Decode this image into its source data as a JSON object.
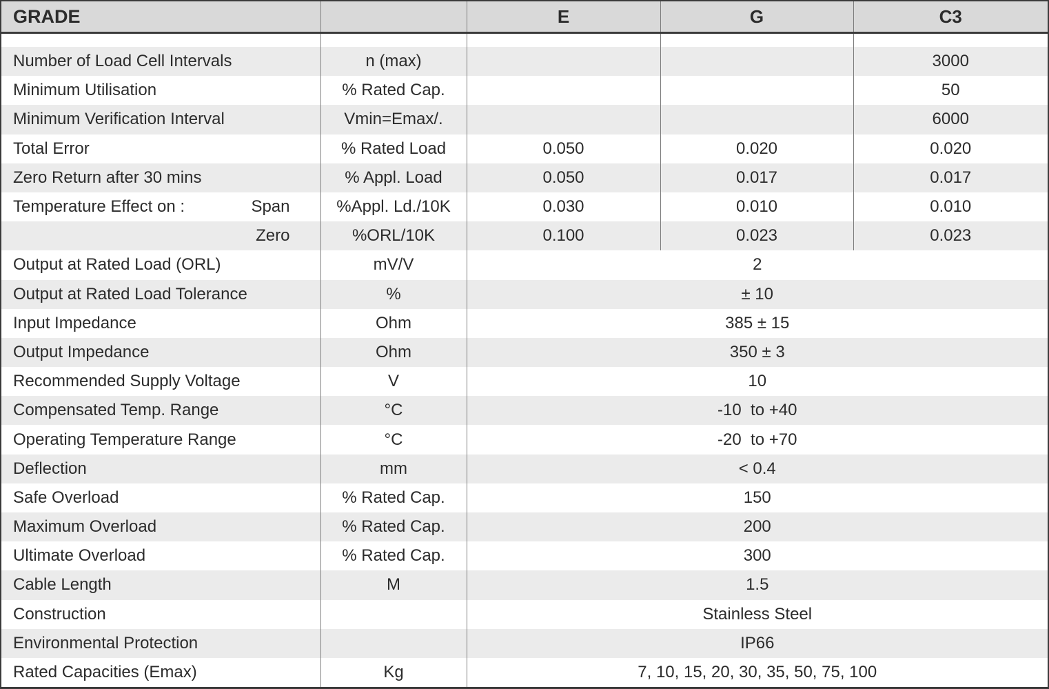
{
  "title": "Load cell specification table",
  "colors": {
    "header_bg": "#d9d9d9",
    "stripe_bg": "#ebebeb",
    "outer_border": "#3b3b3b",
    "grid_line": "#7d7d7d",
    "text": "#2c2c2c"
  },
  "header": {
    "grade_label": "GRADE",
    "unit_header": "",
    "grades": [
      "E",
      "G",
      "C3"
    ]
  },
  "rows": [
    {
      "label": "Number of Load Cell Intervals",
      "unit": "n (max)",
      "e": "",
      "g": "",
      "c3": "3000"
    },
    {
      "label": "Minimum Utilisation",
      "unit": "% Rated Cap.",
      "e": "",
      "g": "",
      "c3": "50"
    },
    {
      "label": "Minimum Verification Interval",
      "unit": "Vmin=Emax/.",
      "e": "",
      "g": "",
      "c3": "6000"
    },
    {
      "label": "Total Error",
      "unit": "% Rated Load",
      "e": "0.050",
      "g": "0.020",
      "c3": "0.020"
    },
    {
      "label": "Zero Return after 30 mins",
      "unit": "% Appl. Load",
      "e": "0.050",
      "g": "0.017",
      "c3": "0.017"
    },
    {
      "label": "Temperature Effect on :",
      "label2": "Span",
      "unit": "%Appl. Ld./10K",
      "e": "0.030",
      "g": "0.010",
      "c3": "0.010"
    },
    {
      "label": "",
      "label2": "Zero",
      "unit": "%ORL/10K",
      "e": "0.100",
      "g": "0.023",
      "c3": "0.023"
    },
    {
      "label": "Output at Rated Load (ORL)",
      "unit": "mV/V",
      "value": "2"
    },
    {
      "label": "Output at Rated Load Tolerance",
      "unit": "%",
      "value": "± 10"
    },
    {
      "label": "Input Impedance",
      "unit": "Ohm",
      "value": "385 ± 15"
    },
    {
      "label": "Output Impedance",
      "unit": "Ohm",
      "value": "350 ± 3"
    },
    {
      "label": "Recommended Supply Voltage",
      "unit": "V",
      "value": "10"
    },
    {
      "label": "Compensated Temp. Range",
      "unit": "°C",
      "value": "-10  to +40"
    },
    {
      "label": "Operating Temperature Range",
      "unit": "°C",
      "value": "-20  to +70"
    },
    {
      "label": "Deflection",
      "unit": "mm",
      "value": "< 0.4"
    },
    {
      "label": "Safe Overload",
      "unit": "% Rated Cap.",
      "value": "150"
    },
    {
      "label": "Maximum Overload",
      "unit": "% Rated Cap.",
      "value": "200"
    },
    {
      "label": "Ultimate Overload",
      "unit": "% Rated Cap.",
      "value": "300"
    },
    {
      "label": "Cable Length",
      "unit": "M",
      "value": "1.5"
    },
    {
      "label": "Construction",
      "unit": "",
      "value": "Stainless Steel"
    },
    {
      "label": "Environmental Protection",
      "unit": "",
      "value": "IP66"
    },
    {
      "label": "Rated Capacities (Emax)",
      "unit": "Kg",
      "value": "7, 10, 15, 20, 30, 35, 50, 75, 100"
    }
  ]
}
